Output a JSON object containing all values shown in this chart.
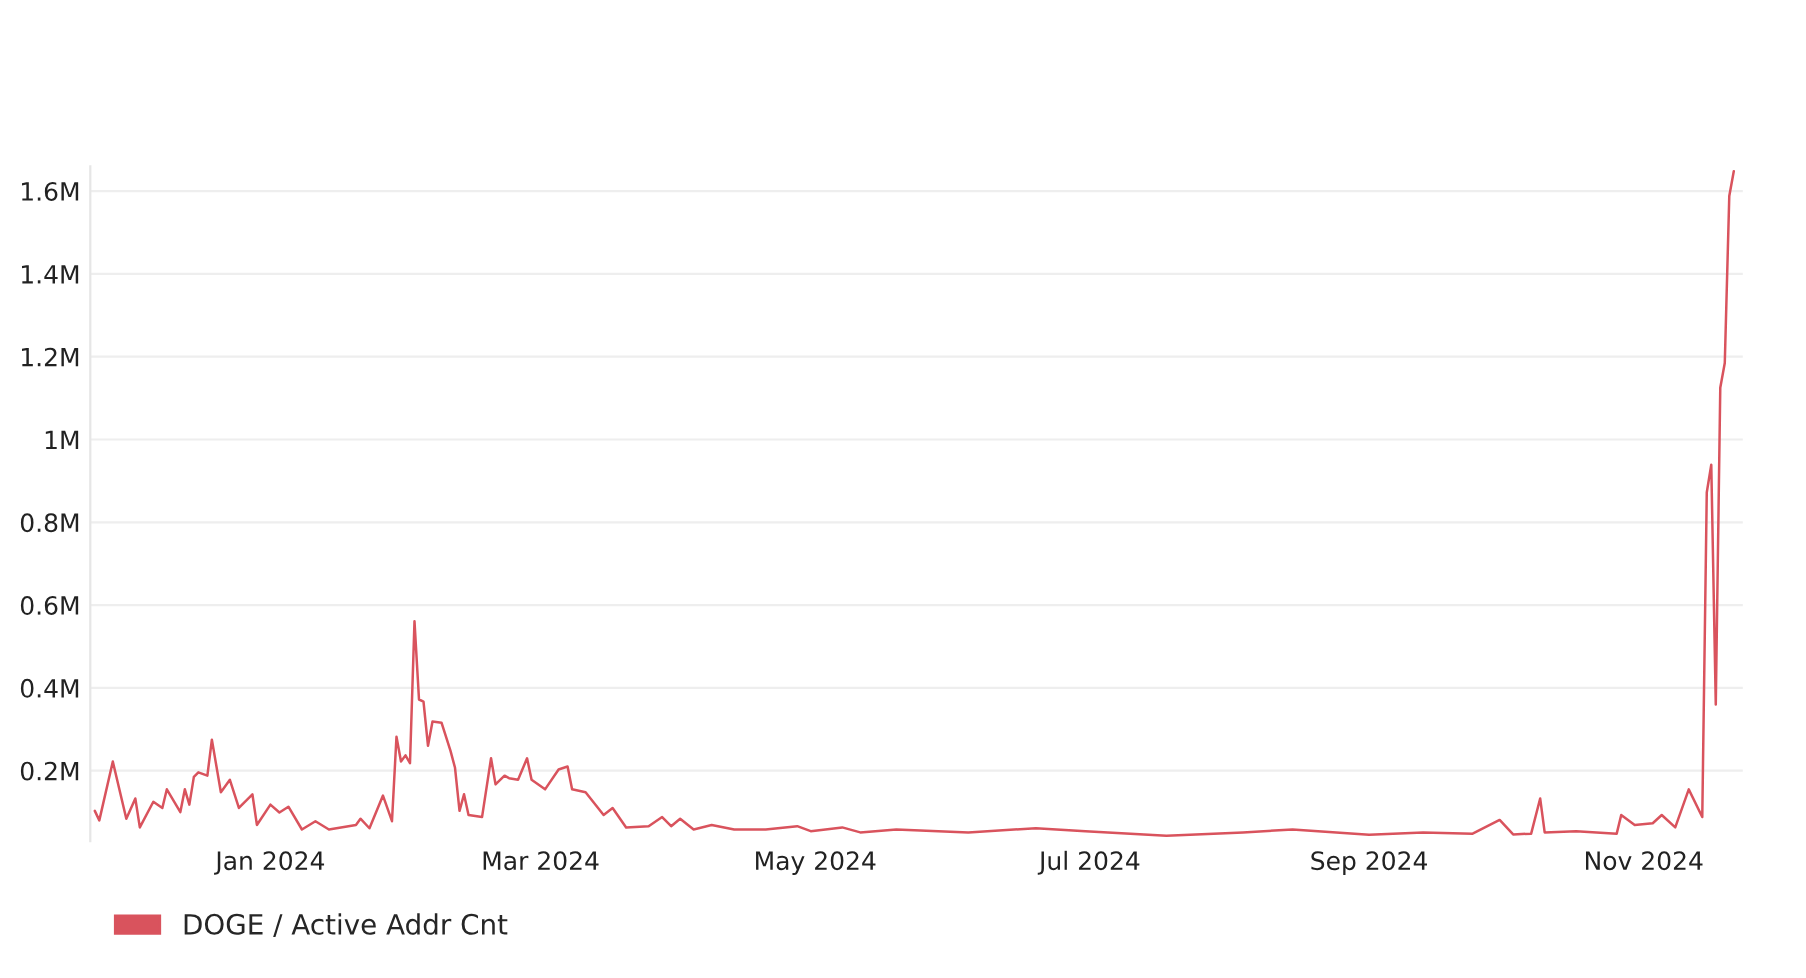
{
  "chart_data": {
    "type": "line",
    "xlim": [
      "2023-11-22",
      "2024-11-23"
    ],
    "xticks": [
      {
        "value": "2024-01-01",
        "label": "Jan 2024"
      },
      {
        "value": "2024-03-01",
        "label": "Mar 2024"
      },
      {
        "value": "2024-05-01",
        "label": "May 2024"
      },
      {
        "value": "2024-07-01",
        "label": "Jul 2024"
      },
      {
        "value": "2024-09-01",
        "label": "Sep 2024"
      },
      {
        "value": "2024-11-01",
        "label": "Nov 2024"
      }
    ],
    "ylim": [
      30000,
      1660000
    ],
    "yticks": [
      {
        "value": 200000,
        "label": "0.2M"
      },
      {
        "value": 400000,
        "label": "0.4M"
      },
      {
        "value": 600000,
        "label": "0.6M"
      },
      {
        "value": 800000,
        "label": "0.8M"
      },
      {
        "value": 1000000,
        "label": "1M"
      },
      {
        "value": 1200000,
        "label": "1.2M"
      },
      {
        "value": 1400000,
        "label": "1.4M"
      },
      {
        "value": 1600000,
        "label": "1.6M"
      }
    ],
    "grid": "y",
    "legend": "bottom left",
    "marker": "none",
    "line_style": "solid",
    "x": [
      "2023-11-23",
      "2023-11-24",
      "2023-11-27",
      "2023-11-30",
      "2023-12-02",
      "2023-12-03",
      "2023-12-06",
      "2023-12-08",
      "2023-12-09",
      "2023-12-12",
      "2023-12-13",
      "2023-12-14",
      "2023-12-15",
      "2023-12-16",
      "2023-12-18",
      "2023-12-19",
      "2023-12-21",
      "2023-12-23",
      "2023-12-25",
      "2023-12-28",
      "2023-12-29",
      "2024-01-01",
      "2024-01-03",
      "2024-01-05",
      "2024-01-08",
      "2024-01-11",
      "2024-01-14",
      "2024-01-20",
      "2024-01-21",
      "2024-01-23",
      "2024-01-26",
      "2024-01-28",
      "2024-01-29",
      "2024-01-30",
      "2024-01-31",
      "2024-02-01",
      "2024-02-02",
      "2024-02-03",
      "2024-02-04",
      "2024-02-05",
      "2024-02-06",
      "2024-02-08",
      "2024-02-10",
      "2024-02-11",
      "2024-02-12",
      "2024-02-13",
      "2024-02-14",
      "2024-02-17",
      "2024-02-19",
      "2024-02-20",
      "2024-02-22",
      "2024-02-23",
      "2024-02-25",
      "2024-02-27",
      "2024-02-28",
      "2024-03-02",
      "2024-03-05",
      "2024-03-07",
      "2024-03-08",
      "2024-03-11",
      "2024-03-15",
      "2024-03-17",
      "2024-03-20",
      "2024-03-25",
      "2024-03-28",
      "2024-03-30",
      "2024-04-01",
      "2024-04-04",
      "2024-04-08",
      "2024-04-13",
      "2024-04-20",
      "2024-04-27",
      "2024-04-30",
      "2024-05-07",
      "2024-05-11",
      "2024-05-19",
      "2024-06-04",
      "2024-06-19",
      "2024-06-30",
      "2024-07-18",
      "2024-08-04",
      "2024-08-15",
      "2024-09-01",
      "2024-09-13",
      "2024-09-24",
      "2024-09-30",
      "2024-10-03",
      "2024-10-07",
      "2024-10-09",
      "2024-10-10",
      "2024-10-17",
      "2024-10-26",
      "2024-10-27",
      "2024-10-30",
      "2024-11-03",
      "2024-11-05",
      "2024-11-08",
      "2024-11-11",
      "2024-11-14",
      "2024-11-15",
      "2024-11-16",
      "2024-11-17",
      "2024-11-18",
      "2024-11-19",
      "2024-11-20",
      "2024-11-21"
    ],
    "series": [
      {
        "name": "DOGE / Active Addr Cnt",
        "color": "#d9535d",
        "values": [
          103000,
          80000,
          222000,
          84000,
          133000,
          63000,
          125000,
          110000,
          155000,
          100000,
          155000,
          118000,
          185000,
          196000,
          188000,
          275000,
          148000,
          178000,
          110000,
          143000,
          69000,
          118000,
          99000,
          113000,
          58000,
          78000,
          58000,
          69000,
          84000,
          61000,
          140000,
          78000,
          282000,
          222000,
          237000,
          218000,
          561000,
          372000,
          367000,
          260000,
          319000,
          316000,
          248000,
          207000,
          103000,
          143000,
          93000,
          88000,
          230000,
          167000,
          188000,
          182000,
          178000,
          230000,
          178000,
          155000,
          203000,
          210000,
          155000,
          148000,
          93000,
          110000,
          63000,
          66000,
          88000,
          66000,
          84000,
          58000,
          69000,
          58000,
          58000,
          66000,
          54000,
          63000,
          51000,
          58000,
          51000,
          61000,
          54000,
          43000,
          51000,
          58000,
          45000,
          51000,
          48000,
          81000,
          46000,
          48000,
          133000,
          51000,
          54000,
          48000,
          93000,
          69000,
          73000,
          93000,
          63000,
          155000,
          88000,
          872000,
          939000,
          360000,
          1125000,
          1185000,
          1588000,
          1648000
        ]
      }
    ]
  }
}
